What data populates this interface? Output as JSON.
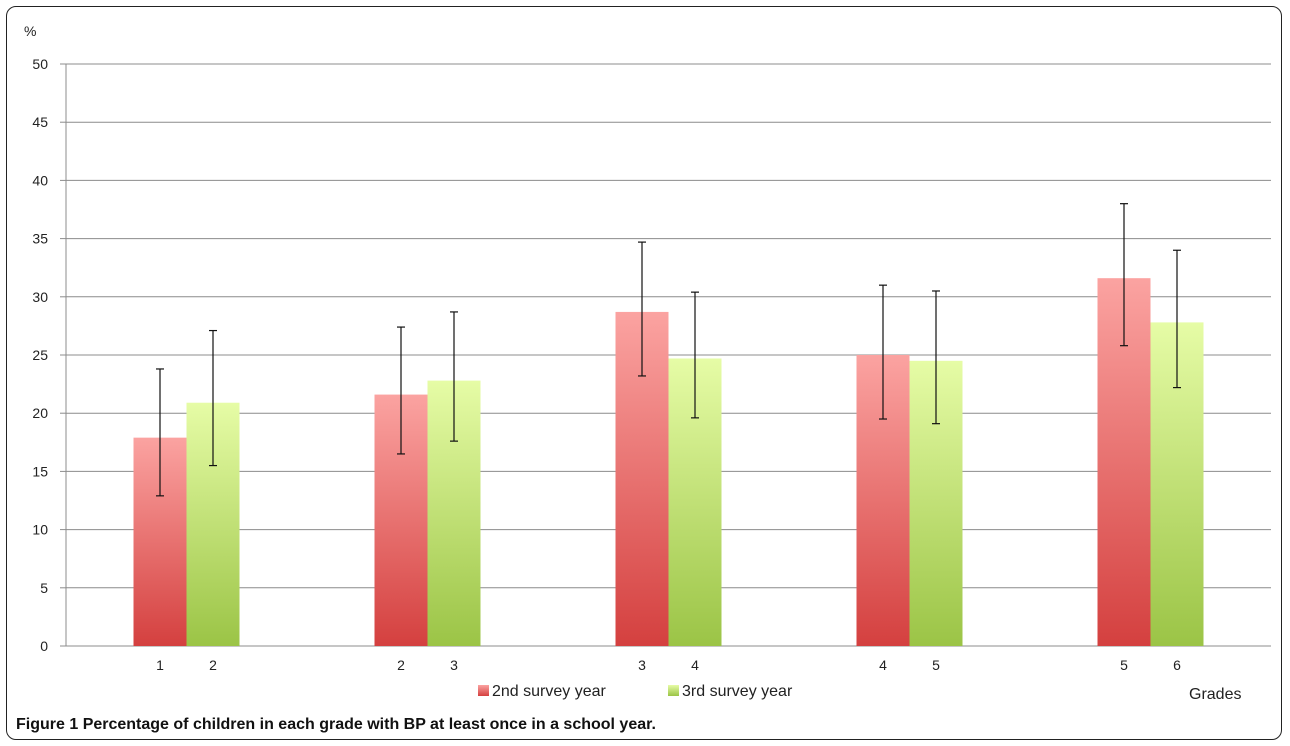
{
  "chart_data": {
    "type": "bar",
    "ylabel": "%",
    "xlabel": "Grades",
    "ylim": [
      0,
      50
    ],
    "yticks": [
      0,
      5,
      10,
      15,
      20,
      25,
      30,
      35,
      40,
      45,
      50
    ],
    "grid": true,
    "legend_position": "bottom",
    "series": [
      {
        "name": "2nd survey year",
        "grade_labels": [
          "1",
          "2",
          "3",
          "4",
          "5"
        ],
        "values": [
          17.9,
          21.6,
          28.7,
          25.0,
          31.6
        ],
        "error_low": [
          12.9,
          16.5,
          23.2,
          19.5,
          25.8
        ],
        "error_high": [
          23.8,
          27.4,
          34.7,
          31.0,
          38.0
        ],
        "color": "#d94545"
      },
      {
        "name": "3rd survey year",
        "grade_labels": [
          "2",
          "3",
          "4",
          "5",
          "6"
        ],
        "values": [
          20.9,
          22.8,
          24.7,
          24.5,
          27.8
        ],
        "error_low": [
          15.5,
          17.6,
          19.6,
          19.1,
          22.2
        ],
        "error_high": [
          27.1,
          28.7,
          30.4,
          30.5,
          34.0
        ],
        "color": "#9dc94a"
      }
    ]
  },
  "caption": {
    "label": "Figure 1",
    "text": "Percentage of children in each grade with BP at least once in a school year."
  }
}
